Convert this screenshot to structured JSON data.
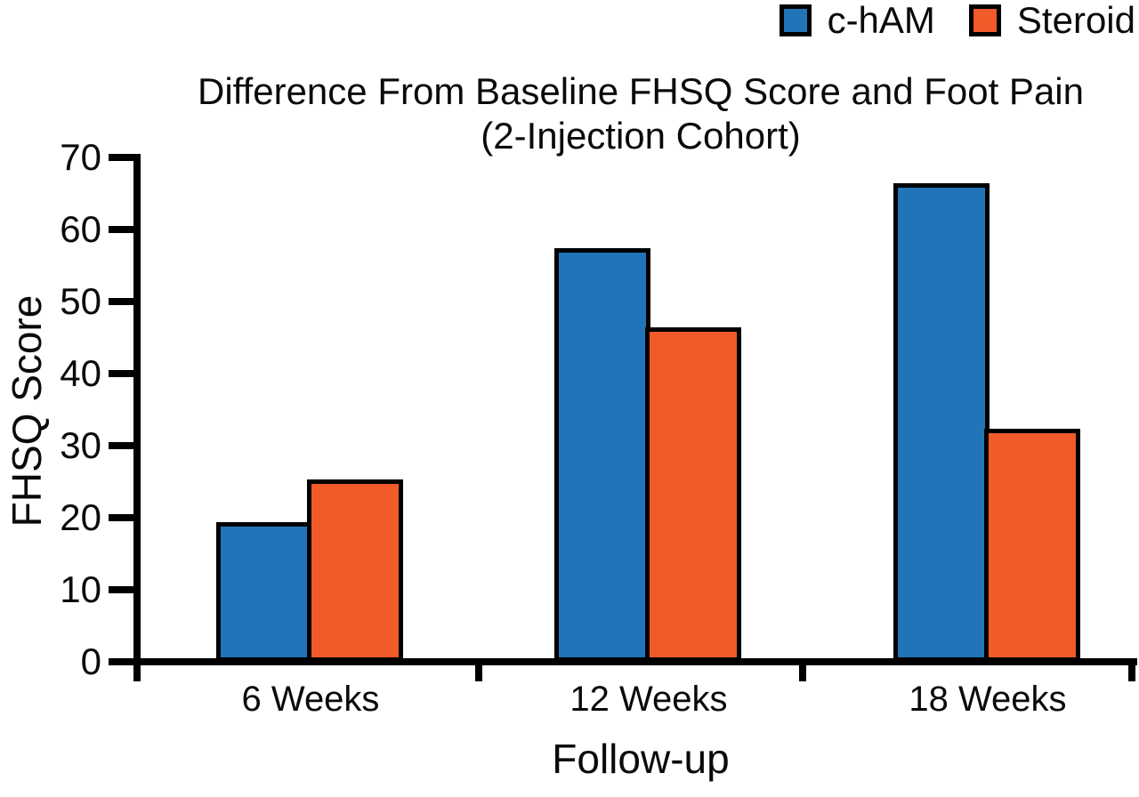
{
  "legend": {
    "items": [
      {
        "name": "c-hAM",
        "label": "c-hAM",
        "color": "#2074B7",
        "icon": "blue-square-swatch"
      },
      {
        "name": "Steroid",
        "label": "Steroid",
        "color": "#F15A29",
        "icon": "orange-square-swatch"
      }
    ]
  },
  "title": {
    "line1": "Difference From Baseline FHSQ Score and Foot Pain",
    "line2": "(2-Injection Cohort)"
  },
  "chart_data": {
    "type": "bar",
    "title": "Difference From Baseline FHSQ Score and Foot Pain (2-Injection Cohort)",
    "categories": [
      "6 Weeks",
      "12 Weeks",
      "18 Weeks"
    ],
    "series": [
      {
        "name": "c-hAM",
        "color": "#2074B7",
        "values": [
          19,
          57,
          66
        ]
      },
      {
        "name": "Steroid",
        "color": "#F15A29",
        "values": [
          25,
          46,
          32
        ]
      }
    ],
    "xlabel": "Follow-up",
    "ylabel": "FHSQ Score",
    "ylim": [
      0,
      70
    ],
    "yticks": [
      0,
      10,
      20,
      30,
      40,
      50,
      60,
      70
    ],
    "grid": false,
    "legend_position": "top-right",
    "bar_outline_color": "#000000",
    "axis_color": "#000000"
  }
}
